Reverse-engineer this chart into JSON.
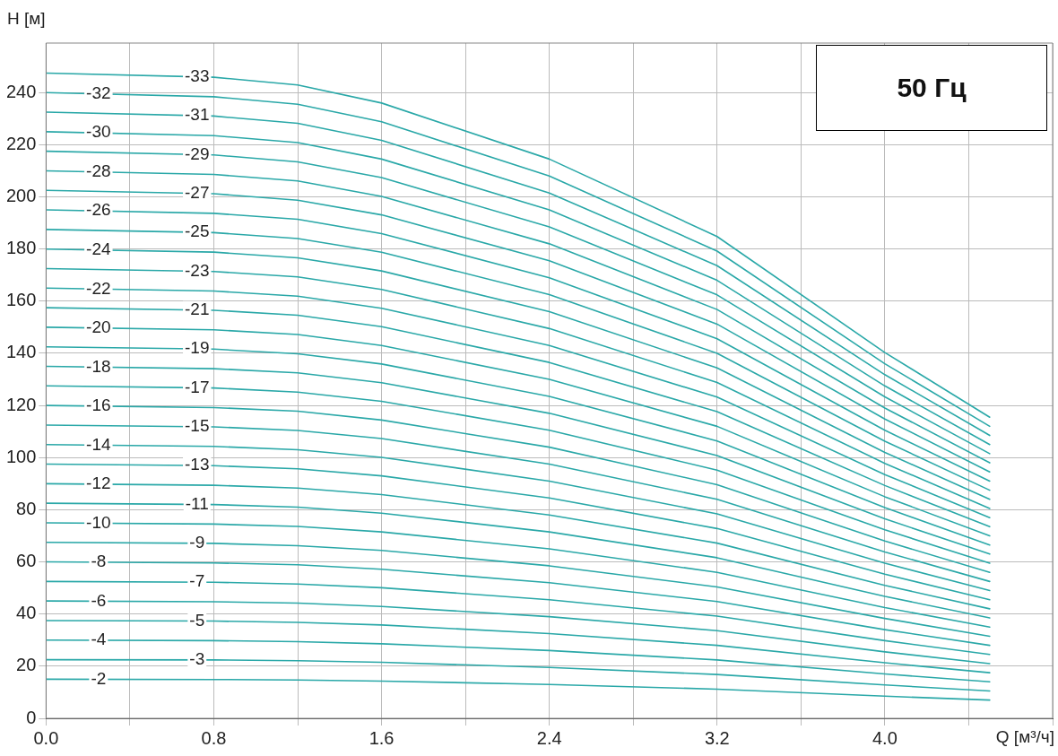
{
  "chart_data": {
    "type": "line",
    "xlabel": "Q [м³/ч]",
    "ylabel": "H [м]",
    "annotations": [
      "50 Гц"
    ],
    "x": [
      0,
      0.8,
      1.2,
      1.6,
      2.4,
      3.2,
      4.0,
      4.5
    ],
    "xlim": [
      0,
      4.8
    ],
    "xticks": [
      {
        "value": 0,
        "label": "0.0"
      },
      {
        "value": 0.4,
        "label": null
      },
      {
        "value": 0.8,
        "label": "0.8"
      },
      {
        "value": 1.2,
        "label": null
      },
      {
        "value": 1.6,
        "label": "1.6"
      },
      {
        "value": 2,
        "label": null
      },
      {
        "value": 2.4,
        "label": "2.4"
      },
      {
        "value": 2.8,
        "label": null
      },
      {
        "value": 3.2,
        "label": "3.2"
      },
      {
        "value": 3.6,
        "label": null
      },
      {
        "value": 4,
        "label": "4.0"
      },
      {
        "value": 4.4,
        "label": null
      },
      {
        "value": 4.8,
        "label": null
      }
    ],
    "ylim": [
      0,
      259
    ],
    "yticks": [
      0,
      20,
      40,
      60,
      80,
      100,
      120,
      140,
      160,
      180,
      200,
      220,
      240
    ],
    "grid": true,
    "legend": false,
    "marker": "none",
    "line_style": "solid",
    "series": [
      {
        "name": "-2",
        "color": "#2aa8a8",
        "values": [
          15,
          14.9,
          14.7,
          14.3,
          13,
          11.2,
          8.5,
          7
        ]
      },
      {
        "name": "-3",
        "color": "#2aa8a8",
        "values": [
          22.5,
          22.4,
          22.1,
          21.5,
          19.5,
          16.8,
          12.8,
          10.5
        ]
      },
      {
        "name": "-4",
        "color": "#2aa8a8",
        "values": [
          30,
          29.8,
          29.4,
          28.6,
          26,
          22.4,
          17,
          14
        ]
      },
      {
        "name": "-5",
        "color": "#2aa8a8",
        "values": [
          37.5,
          37.3,
          36.8,
          35.8,
          32.5,
          28,
          21.3,
          17.5
        ]
      },
      {
        "name": "-6",
        "color": "#2aa8a8",
        "values": [
          45,
          44.7,
          44.2,
          42.9,
          39,
          33.6,
          25.5,
          21
        ]
      },
      {
        "name": "-7",
        "color": "#2aa8a8",
        "values": [
          52.5,
          52.2,
          51.5,
          50.1,
          45.5,
          39.2,
          29.8,
          24.5
        ]
      },
      {
        "name": "-8",
        "color": "#2aa8a8",
        "values": [
          60,
          59.6,
          58.9,
          57.2,
          52,
          44.8,
          34,
          28
        ]
      },
      {
        "name": "-9",
        "color": "#2aa8a8",
        "values": [
          67.5,
          67.1,
          66.2,
          64.4,
          58.5,
          50.4,
          38.3,
          31.5
        ]
      },
      {
        "name": "-10",
        "color": "#2aa8a8",
        "values": [
          75,
          74.5,
          73.6,
          71.5,
          65,
          56,
          42.5,
          35
        ]
      },
      {
        "name": "-11",
        "color": "#2aa8a8",
        "values": [
          82.5,
          82,
          81,
          78.7,
          71.5,
          61.6,
          46.8,
          38.5
        ]
      },
      {
        "name": "-12",
        "color": "#2aa8a8",
        "values": [
          90,
          89.4,
          88.3,
          85.8,
          78,
          67.2,
          51,
          42
        ]
      },
      {
        "name": "-13",
        "color": "#2aa8a8",
        "values": [
          97.5,
          96.9,
          95.7,
          93,
          84.5,
          72.8,
          55.3,
          45.5
        ]
      },
      {
        "name": "-14",
        "color": "#2aa8a8",
        "values": [
          105,
          104.3,
          103,
          100.1,
          91,
          78.4,
          59.5,
          49
        ]
      },
      {
        "name": "-15",
        "color": "#2aa8a8",
        "values": [
          112.5,
          111.8,
          110.4,
          107.3,
          97.5,
          84,
          63.8,
          52.5
        ]
      },
      {
        "name": "-16",
        "color": "#2aa8a8",
        "values": [
          120,
          119.2,
          117.8,
          114.4,
          104,
          89.6,
          68,
          56
        ]
      },
      {
        "name": "-17",
        "color": "#2aa8a8",
        "values": [
          127.5,
          126.7,
          125.1,
          121.6,
          110.5,
          95.2,
          72.3,
          59.5
        ]
      },
      {
        "name": "-18",
        "color": "#2aa8a8",
        "values": [
          135,
          134.1,
          132.5,
          128.7,
          117,
          100.8,
          76.5,
          63
        ]
      },
      {
        "name": "-19",
        "color": "#2aa8a8",
        "values": [
          142.5,
          141.6,
          139.8,
          135.9,
          123.5,
          106.4,
          80.8,
          66.5
        ]
      },
      {
        "name": "-20",
        "color": "#2aa8a8",
        "values": [
          150,
          149,
          147.2,
          143,
          130,
          112,
          85,
          70
        ]
      },
      {
        "name": "-21",
        "color": "#2aa8a8",
        "values": [
          157.5,
          156.5,
          154.6,
          150.2,
          136.5,
          117.6,
          89.3,
          73.5
        ]
      },
      {
        "name": "-22",
        "color": "#2aa8a8",
        "values": [
          165,
          163.9,
          161.9,
          157.3,
          143,
          123.2,
          93.5,
          77
        ]
      },
      {
        "name": "-23",
        "color": "#2aa8a8",
        "values": [
          172.5,
          171.4,
          169.3,
          164.5,
          149.5,
          128.8,
          97.8,
          80.5
        ]
      },
      {
        "name": "-24",
        "color": "#2aa8a8",
        "values": [
          180,
          178.8,
          176.6,
          171.6,
          156,
          134.4,
          102,
          84
        ]
      },
      {
        "name": "-25",
        "color": "#2aa8a8",
        "values": [
          187.5,
          186.3,
          184,
          178.8,
          162.5,
          140,
          106.3,
          87.5
        ]
      },
      {
        "name": "-26",
        "color": "#2aa8a8",
        "values": [
          195,
          193.7,
          191.4,
          185.9,
          169,
          145.6,
          110.5,
          91
        ]
      },
      {
        "name": "-27",
        "color": "#2aa8a8",
        "values": [
          202.5,
          201.2,
          198.7,
          193.1,
          175.5,
          151.2,
          114.8,
          94.5
        ]
      },
      {
        "name": "-28",
        "color": "#2aa8a8",
        "values": [
          210,
          208.6,
          206.1,
          200.2,
          182,
          156.8,
          119,
          98
        ]
      },
      {
        "name": "-29",
        "color": "#2aa8a8",
        "values": [
          217.5,
          216.1,
          213.4,
          207.4,
          188.5,
          162.4,
          123.3,
          101.5
        ]
      },
      {
        "name": "-30",
        "color": "#2aa8a8",
        "values": [
          225,
          223.5,
          220.8,
          214.5,
          195,
          168,
          127.5,
          105
        ]
      },
      {
        "name": "-31",
        "color": "#2aa8a8",
        "values": [
          232.5,
          231,
          228.2,
          221.7,
          201.5,
          173.6,
          131.8,
          108.5
        ]
      },
      {
        "name": "-32",
        "color": "#2aa8a8",
        "values": [
          240,
          238.4,
          235.5,
          228.8,
          208,
          179.2,
          136,
          112
        ]
      },
      {
        "name": "-33",
        "color": "#2aa8a8",
        "values": [
          247.5,
          245.9,
          242.9,
          236,
          214.5,
          184.8,
          140.3,
          115.5
        ]
      }
    ]
  }
}
